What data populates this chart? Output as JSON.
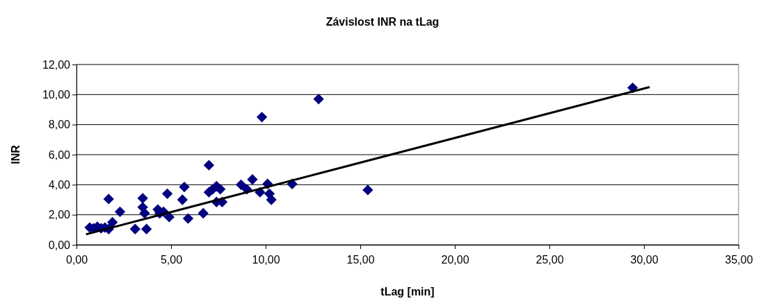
{
  "chart_data": {
    "type": "scatter",
    "title": "Závislost INR na tLag",
    "xlabel": "tLag [min]",
    "ylabel": "INR",
    "xlim": [
      0,
      35
    ],
    "ylim": [
      0,
      12
    ],
    "xticks": [
      {
        "value": 0,
        "label": "0,00"
      },
      {
        "value": 5,
        "label": "5,00"
      },
      {
        "value": 10,
        "label": "10,00"
      },
      {
        "value": 15,
        "label": "15,00"
      },
      {
        "value": 20,
        "label": "20,00"
      },
      {
        "value": 25,
        "label": "25,00"
      },
      {
        "value": 30,
        "label": "30,00"
      },
      {
        "value": 35,
        "label": "35,00"
      }
    ],
    "yticks": [
      {
        "value": 0,
        "label": "0,00"
      },
      {
        "value": 2,
        "label": "2,00"
      },
      {
        "value": 4,
        "label": "4,00"
      },
      {
        "value": 6,
        "label": "6,00"
      },
      {
        "value": 8,
        "label": "8,00"
      },
      {
        "value": 10,
        "label": "10,00"
      },
      {
        "value": 12,
        "label": "12,00"
      }
    ],
    "grid": "y",
    "marker": "diamond",
    "series": [
      {
        "color": "#000080",
        "x": [
          0.7,
          0.9,
          1.1,
          1.3,
          1.5,
          1.7,
          1.7,
          1.9,
          2.3,
          3.1,
          3.5,
          3.5,
          3.6,
          3.7,
          4.3,
          4.4,
          4.6,
          4.8,
          4.9,
          5.6,
          5.7,
          5.9,
          6.7,
          7.0,
          7.0,
          7.2,
          7.4,
          7.4,
          7.6,
          7.7,
          8.7,
          9.0,
          9.3,
          9.7,
          9.8,
          10.1,
          10.2,
          10.3,
          11.4,
          12.8,
          15.4,
          29.4
        ],
        "values": [
          1.15,
          1.1,
          1.2,
          1.1,
          1.15,
          1.05,
          3.05,
          1.5,
          2.2,
          1.05,
          3.1,
          2.5,
          2.1,
          1.05,
          2.35,
          2.1,
          2.2,
          3.4,
          1.85,
          3.0,
          3.85,
          1.75,
          2.1,
          5.3,
          3.5,
          3.7,
          3.9,
          2.85,
          3.7,
          2.85,
          4.0,
          3.7,
          4.35,
          3.5,
          8.5,
          4.05,
          3.4,
          3.0,
          4.05,
          9.7,
          3.65,
          10.45
        ]
      },
      {
        "type": "line",
        "color": "#000000",
        "x": [
          0.5,
          30.3
        ],
        "values": [
          0.7,
          10.5
        ],
        "marker": "none",
        "line_style": "solid"
      }
    ]
  }
}
